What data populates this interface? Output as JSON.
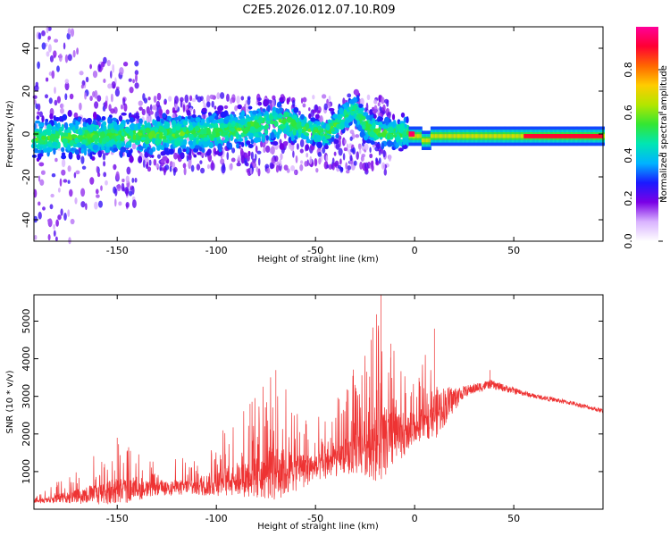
{
  "title": "C2E5.2026.012.07.10.R09",
  "chart_data": [
    {
      "type": "heatmap",
      "xlabel": "Height of straight line (km)",
      "ylabel": "Frequency (Hz)",
      "xlim": [
        -192,
        95
      ],
      "ylim": [
        -50,
        50
      ],
      "xticks": [
        -150,
        -100,
        -50,
        0,
        50
      ],
      "yticks": [
        -40,
        -20,
        0,
        20,
        40
      ],
      "colorbar": {
        "label": "Normalized spectral amplitude",
        "range": [
          0,
          1
        ],
        "ticks": [
          "0.0",
          "0.2",
          "0.4",
          "0.6",
          "0.8"
        ],
        "tick_values": [
          0.0,
          0.2,
          0.4,
          0.6,
          0.8
        ],
        "colors": [
          "#ffffff",
          "#d9b3ff",
          "#7a00e6",
          "#1a1aff",
          "#00b3ff",
          "#00e6b3",
          "#33e633",
          "#b3e600",
          "#ffcc00",
          "#ff6600",
          "#ff0033",
          "#ff0099"
        ]
      },
      "ridge": [
        {
          "x": -190,
          "f": -2
        },
        {
          "x": -150,
          "f": -1
        },
        {
          "x": -120,
          "f": 0
        },
        {
          "x": -95,
          "f": 1
        },
        {
          "x": -80,
          "f": 4
        },
        {
          "x": -65,
          "f": 6
        },
        {
          "x": -55,
          "f": 2
        },
        {
          "x": -45,
          "f": 0
        },
        {
          "x": -35,
          "f": 8
        },
        {
          "x": -30,
          "f": 12
        },
        {
          "x": -25,
          "f": 4
        },
        {
          "x": -20,
          "f": 1
        },
        {
          "x": -10,
          "f": 0
        },
        {
          "x": 0,
          "f": 1
        },
        {
          "x": 5,
          "f": -3
        },
        {
          "x": 10,
          "f": 0
        },
        {
          "x": 30,
          "f": 0
        },
        {
          "x": 60,
          "f": -1
        },
        {
          "x": 95,
          "f": -2
        }
      ],
      "strong_band": {
        "x_start": -3,
        "x_end": 95,
        "f": -1,
        "peak_x": -2
      }
    },
    {
      "type": "line",
      "title": "",
      "xlabel": "Height of straight line (km)",
      "ylabel": "SNR (10 * v/v)",
      "xlim": [
        -192,
        95
      ],
      "ylim": [
        0,
        5700
      ],
      "xticks": [
        -150,
        -100,
        -50,
        0,
        50
      ],
      "yticks": [
        1000,
        2000,
        3000,
        4000,
        5000
      ],
      "series": [
        {
          "name": "SNR",
          "color": "#ee3333",
          "envelope": [
            {
              "x": -192,
              "base": 200,
              "max": 350
            },
            {
              "x": -170,
              "base": 300,
              "max": 1100
            },
            {
              "x": -150,
              "base": 400,
              "max": 1900
            },
            {
              "x": -130,
              "base": 500,
              "max": 1200
            },
            {
              "x": -110,
              "base": 550,
              "max": 1500
            },
            {
              "x": -90,
              "base": 700,
              "max": 2500
            },
            {
              "x": -70,
              "base": 800,
              "max": 3700
            },
            {
              "x": -50,
              "base": 1000,
              "max": 2400
            },
            {
              "x": -35,
              "base": 1300,
              "max": 3200
            },
            {
              "x": -25,
              "base": 1500,
              "max": 4500
            },
            {
              "x": -17,
              "base": 1500,
              "max": 5700
            },
            {
              "x": -10,
              "base": 1700,
              "max": 4600
            },
            {
              "x": 0,
              "base": 2000,
              "max": 3300
            },
            {
              "x": 10,
              "base": 2400,
              "max": 4800
            },
            {
              "x": 25,
              "base": 3100,
              "max": 3600
            },
            {
              "x": 38,
              "base": 3300,
              "max": 3700
            },
            {
              "x": 60,
              "base": 3000,
              "max": 3200
            },
            {
              "x": 80,
              "base": 2800,
              "max": 3000
            },
            {
              "x": 95,
              "base": 2600,
              "max": 2800
            }
          ],
          "spikes": [
            {
              "x": -70,
              "y": 3700
            },
            {
              "x": -83,
              "y": 2800
            },
            {
              "x": -150,
              "y": 1900
            },
            {
              "x": -22,
              "y": 4500
            },
            {
              "x": -17,
              "y": 5700
            },
            {
              "x": -12,
              "y": 4400
            },
            {
              "x": 10,
              "y": 4800
            },
            {
              "x": 38,
              "y": 3700
            }
          ]
        }
      ]
    }
  ]
}
